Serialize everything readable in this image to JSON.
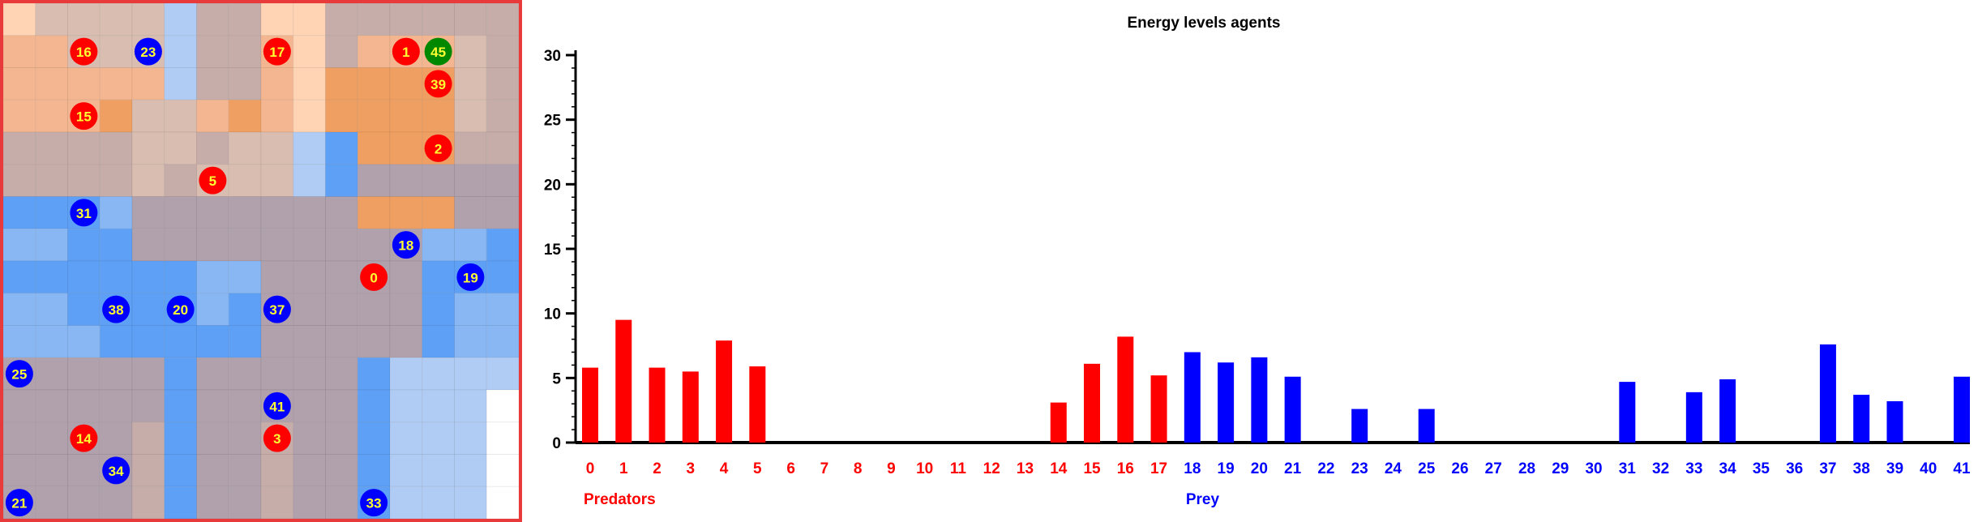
{
  "colors": {
    "predator": "#ff0000",
    "prey": "#0000ff",
    "special_agent": "#008800",
    "agent_label": "#ffff33",
    "panel_border": "#e83a3a",
    "axis": "#000000",
    "cell_orange_1": "#ffd4b4",
    "cell_orange_2": "#f3b690",
    "cell_orange_3": "#ef9f62",
    "cell_tan_1": "#d8bdb0",
    "cell_tan_2": "#c6ada9",
    "cell_mauve": "#b0a1ac",
    "cell_blue_1": "#b0ccf4",
    "cell_blue_2": "#88b7f4",
    "cell_blue_3": "#5ea0f6",
    "cell_white": "#ffffff"
  },
  "grid": {
    "rows": 16,
    "cols": 16,
    "palette": {
      "A": "#ffd4b4",
      "B": "#f3b690",
      "C": "#ef9f62",
      "D": "#d8bdb0",
      "E": "#c6ada9",
      "F": "#b0a1ac",
      "G": "#b0ccf4",
      "H": "#88b7f4",
      "I": "#5ea0f6",
      "W": "#ffffff"
    },
    "cells": [
      "ADDDDGEEAAEEEEEE",
      "BBDDDGEEBAEBBBDE",
      "BBBBBGEEBACCCCDE",
      "BBBCDDBCBACCCCDE",
      "EEEEDDEDDGICCCEE",
      "EEEEDEDDDGIFFFFF",
      "IIIHFFFFFFFCCCFF",
      "HHIIFFFFFFFFFHHI",
      "IIIIIIHHFFFFFIII",
      "HHIIIIHIFFFFFIHH",
      "HHHIIIIIFFFFFIHH",
      "FFFFFIFFFFFIGGGG",
      "FFFFFIFFFFFIGGGW",
      "FFFFEIFFEFFIGGGW",
      "FFFFEIFFEFFIGGGW",
      "FFFFEIFFEFFIGGGW"
    ]
  },
  "agents": [
    {
      "id": "16",
      "kind": "predator",
      "col": 2,
      "row": 1
    },
    {
      "id": "23",
      "kind": "prey",
      "col": 4,
      "row": 1
    },
    {
      "id": "17",
      "kind": "predator",
      "col": 8,
      "row": 1
    },
    {
      "id": "1",
      "kind": "predator",
      "col": 12,
      "row": 1
    },
    {
      "id": "45",
      "kind": "special",
      "col": 13,
      "row": 1
    },
    {
      "id": "39",
      "kind": "predator",
      "col": 13,
      "row": 2
    },
    {
      "id": "15",
      "kind": "predator",
      "col": 2,
      "row": 3
    },
    {
      "id": "2",
      "kind": "predator",
      "col": 13,
      "row": 4
    },
    {
      "id": "5",
      "kind": "predator",
      "col": 6,
      "row": 5
    },
    {
      "id": "31",
      "kind": "prey",
      "col": 2,
      "row": 6
    },
    {
      "id": "18",
      "kind": "prey",
      "col": 12,
      "row": 7
    },
    {
      "id": "0",
      "kind": "predator",
      "col": 11,
      "row": 8
    },
    {
      "id": "19",
      "kind": "prey",
      "col": 14,
      "row": 8
    },
    {
      "id": "38",
      "kind": "prey",
      "col": 3,
      "row": 9
    },
    {
      "id": "20",
      "kind": "prey",
      "col": 5,
      "row": 9
    },
    {
      "id": "37",
      "kind": "prey",
      "col": 8,
      "row": 9
    },
    {
      "id": "25",
      "kind": "prey",
      "col": 0,
      "row": 11
    },
    {
      "id": "41",
      "kind": "prey",
      "col": 8,
      "row": 12
    },
    {
      "id": "14",
      "kind": "predator",
      "col": 2,
      "row": 13
    },
    {
      "id": "3",
      "kind": "predator",
      "col": 8,
      "row": 13
    },
    {
      "id": "34",
      "kind": "prey",
      "col": 3,
      "row": 14
    },
    {
      "id": "21",
      "kind": "prey",
      "col": 0,
      "row": 15
    },
    {
      "id": "33",
      "kind": "prey",
      "col": 11,
      "row": 15
    }
  ],
  "chart_data": {
    "type": "bar",
    "title": "Energy levels agents",
    "xlabel": "",
    "ylabel": "",
    "ylim": [
      0,
      30
    ],
    "yticks": [
      "0",
      "5",
      "10",
      "15",
      "20",
      "25",
      "30"
    ],
    "categories": [
      "0",
      "1",
      "2",
      "3",
      "4",
      "5",
      "6",
      "7",
      "8",
      "9",
      "10",
      "11",
      "12",
      "13",
      "14",
      "15",
      "16",
      "17",
      "18",
      "19",
      "20",
      "21",
      "22",
      "23",
      "24",
      "25",
      "26",
      "27",
      "28",
      "29",
      "30",
      "31",
      "32",
      "33",
      "34",
      "35",
      "36",
      "37",
      "38",
      "39",
      "40",
      "41"
    ],
    "values": [
      5.8,
      9.5,
      5.8,
      5.5,
      7.9,
      5.9,
      0,
      0,
      0,
      0,
      0,
      0,
      0,
      0,
      3.1,
      6.1,
      8.2,
      5.2,
      7.0,
      6.2,
      6.6,
      5.1,
      0,
      2.6,
      0,
      2.6,
      0,
      0,
      0,
      0,
      0,
      4.7,
      0,
      3.9,
      4.9,
      0,
      0,
      7.6,
      3.7,
      3.2,
      0,
      5.1
    ],
    "groups": [
      {
        "label": "Predators",
        "from": 0,
        "to": 17,
        "color": "#ff0000"
      },
      {
        "label": "Prey",
        "from": 18,
        "to": 41,
        "color": "#0000ff"
      }
    ],
    "grid": false,
    "legend": "none"
  }
}
